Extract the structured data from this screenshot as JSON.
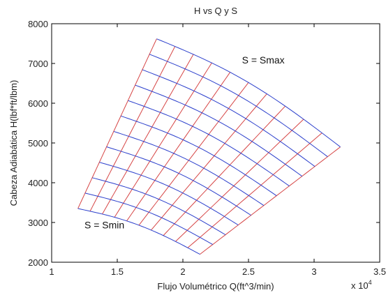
{
  "chart_data": {
    "type": "line",
    "title": "H vs Q y S",
    "xlabel": "Flujo Volumétrico Q(ft^3/min)",
    "ylabel": "Cabeza Adiabática H(lbf*ft/lbm)",
    "xlim": [
      1,
      3.5
    ],
    "ylim": [
      2000,
      8000
    ],
    "x_multiplier_label": "x 10^4",
    "x_multiplier_base": "x 10",
    "x_multiplier_exp": "4",
    "x_ticks": [
      "1",
      "1.5",
      "2",
      "2.5",
      "3",
      "3.5"
    ],
    "y_ticks": [
      "2000",
      "3000",
      "4000",
      "5000",
      "6000",
      "7000",
      "8000"
    ],
    "grid": false,
    "colors": {
      "speed_lines": "#2b3fcc",
      "flow_lines": "#d64545",
      "axes": "#000000"
    },
    "corners": {
      "min_flow_at_min_speed": [
        1.2,
        3350
      ],
      "max_flow_at_min_speed": [
        2.13,
        2200
      ],
      "min_flow_at_max_speed": [
        1.8,
        7620
      ],
      "max_flow_at_max_speed": [
        3.2,
        4900
      ]
    },
    "grid_divisions": {
      "speed_curves": 12,
      "flow_curves": 11
    },
    "annotations": [
      {
        "text": "S = Smax",
        "x": 2.45,
        "y": 7000
      },
      {
        "text": "S = Smin",
        "x": 1.25,
        "y": 2850
      }
    ]
  }
}
